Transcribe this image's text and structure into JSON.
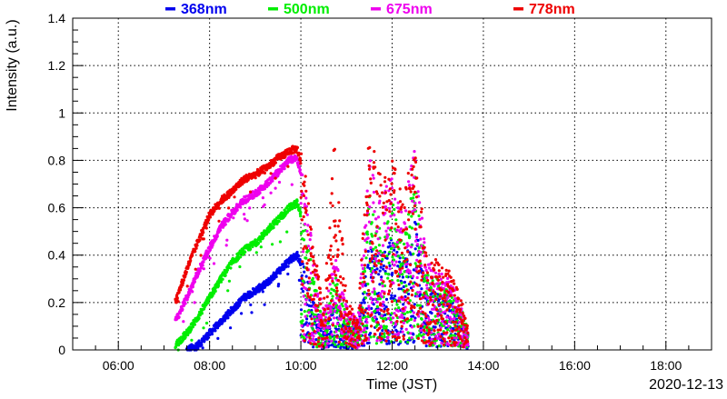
{
  "chart_data": {
    "type": "scatter",
    "title": "",
    "xlabel": "Time (JST)",
    "ylabel": "Intensity (a.u.)",
    "date_label": "2020-12-13",
    "xlim": [
      "05:00",
      "19:00"
    ],
    "ylim": [
      0,
      1.4
    ],
    "grid": true,
    "legend_placement": "top",
    "x_ticks": [
      "06:00",
      "08:00",
      "10:00",
      "12:00",
      "14:00",
      "16:00",
      "18:00"
    ],
    "y_ticks": [
      "0",
      "0.2",
      "0.4",
      "0.6",
      "0.8",
      "1",
      "1.2",
      "1.4"
    ],
    "series": [
      {
        "name": "368nm",
        "color": "#0000ee",
        "envelope": [
          [
            "07:30",
            0.0
          ],
          [
            "07:45",
            0.02
          ],
          [
            "08:00",
            0.07
          ],
          [
            "08:15",
            0.12
          ],
          [
            "08:30",
            0.17
          ],
          [
            "08:45",
            0.22
          ],
          [
            "09:00",
            0.25
          ],
          [
            "09:15",
            0.28
          ],
          [
            "09:30",
            0.33
          ],
          [
            "09:45",
            0.38
          ],
          [
            "09:55",
            0.4
          ],
          [
            "10:05",
            0.34
          ],
          [
            "10:15",
            0.22
          ],
          [
            "10:30",
            0.08
          ],
          [
            "10:45",
            0.2
          ],
          [
            "11:00",
            0.1
          ],
          [
            "11:15",
            0.08
          ],
          [
            "11:30",
            0.45
          ],
          [
            "11:45",
            0.38
          ],
          [
            "12:00",
            0.45
          ],
          [
            "12:15",
            0.35
          ],
          [
            "12:30",
            0.55
          ],
          [
            "12:45",
            0.25
          ],
          [
            "13:00",
            0.25
          ],
          [
            "13:15",
            0.22
          ],
          [
            "13:30",
            0.15
          ],
          [
            "13:40",
            0.06
          ]
        ]
      },
      {
        "name": "500nm",
        "color": "#00ee00",
        "envelope": [
          [
            "07:15",
            0.02
          ],
          [
            "07:30",
            0.07
          ],
          [
            "07:45",
            0.14
          ],
          [
            "08:00",
            0.22
          ],
          [
            "08:15",
            0.3
          ],
          [
            "08:30",
            0.37
          ],
          [
            "08:45",
            0.42
          ],
          [
            "09:00",
            0.45
          ],
          [
            "09:15",
            0.5
          ],
          [
            "09:30",
            0.55
          ],
          [
            "09:45",
            0.6
          ],
          [
            "09:55",
            0.62
          ],
          [
            "10:05",
            0.52
          ],
          [
            "10:15",
            0.32
          ],
          [
            "10:30",
            0.12
          ],
          [
            "10:45",
            0.3
          ],
          [
            "11:00",
            0.14
          ],
          [
            "11:15",
            0.1
          ],
          [
            "11:30",
            0.62
          ],
          [
            "11:45",
            0.5
          ],
          [
            "12:00",
            0.6
          ],
          [
            "12:15",
            0.45
          ],
          [
            "12:30",
            0.7
          ],
          [
            "12:45",
            0.3
          ],
          [
            "13:00",
            0.3
          ],
          [
            "13:15",
            0.26
          ],
          [
            "13:30",
            0.18
          ],
          [
            "13:40",
            0.08
          ]
        ]
      },
      {
        "name": "675nm",
        "color": "#ee00ee",
        "envelope": [
          [
            "07:15",
            0.12
          ],
          [
            "07:30",
            0.22
          ],
          [
            "07:45",
            0.33
          ],
          [
            "08:00",
            0.43
          ],
          [
            "08:15",
            0.52
          ],
          [
            "08:30",
            0.58
          ],
          [
            "08:45",
            0.63
          ],
          [
            "09:00",
            0.66
          ],
          [
            "09:15",
            0.7
          ],
          [
            "09:30",
            0.75
          ],
          [
            "09:45",
            0.8
          ],
          [
            "09:55",
            0.81
          ],
          [
            "10:05",
            0.68
          ],
          [
            "10:15",
            0.42
          ],
          [
            "10:30",
            0.16
          ],
          [
            "10:45",
            0.38
          ],
          [
            "11:00",
            0.18
          ],
          [
            "11:15",
            0.12
          ],
          [
            "11:30",
            0.78
          ],
          [
            "11:45",
            0.62
          ],
          [
            "12:00",
            0.7
          ],
          [
            "12:15",
            0.55
          ],
          [
            "12:30",
            0.85
          ],
          [
            "12:45",
            0.35
          ],
          [
            "13:00",
            0.34
          ],
          [
            "13:15",
            0.3
          ],
          [
            "13:30",
            0.2
          ],
          [
            "13:40",
            0.09
          ]
        ]
      },
      {
        "name": "778nm",
        "color": "#ee0000",
        "envelope": [
          [
            "07:15",
            0.2
          ],
          [
            "07:30",
            0.34
          ],
          [
            "07:45",
            0.46
          ],
          [
            "08:00",
            0.57
          ],
          [
            "08:15",
            0.63
          ],
          [
            "08:30",
            0.67
          ],
          [
            "08:45",
            0.72
          ],
          [
            "09:00",
            0.74
          ],
          [
            "09:15",
            0.77
          ],
          [
            "09:30",
            0.81
          ],
          [
            "09:45",
            0.84
          ],
          [
            "09:55",
            0.85
          ],
          [
            "10:05",
            0.74
          ],
          [
            "10:15",
            0.45
          ],
          [
            "10:30",
            0.18
          ],
          [
            "10:45",
            0.9
          ],
          [
            "11:00",
            0.2
          ],
          [
            "11:15",
            0.13
          ],
          [
            "11:30",
            0.88
          ],
          [
            "11:45",
            0.7
          ],
          [
            "12:00",
            0.78
          ],
          [
            "12:15",
            0.6
          ],
          [
            "12:30",
            0.88
          ],
          [
            "12:45",
            0.38
          ],
          [
            "13:00",
            0.36
          ],
          [
            "13:15",
            0.32
          ],
          [
            "13:30",
            0.22
          ],
          [
            "13:40",
            0.1
          ]
        ]
      }
    ]
  }
}
